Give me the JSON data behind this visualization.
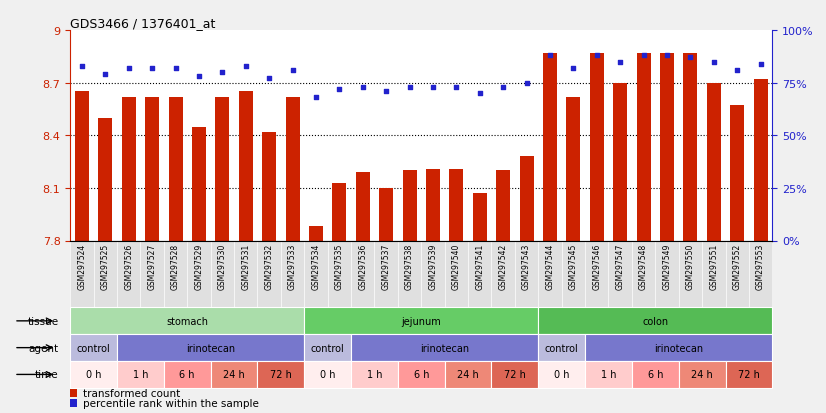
{
  "title": "GDS3466 / 1376401_at",
  "samples": [
    "GSM297524",
    "GSM297525",
    "GSM297526",
    "GSM297527",
    "GSM297528",
    "GSM297529",
    "GSM297530",
    "GSM297531",
    "GSM297532",
    "GSM297533",
    "GSM297534",
    "GSM297535",
    "GSM297536",
    "GSM297537",
    "GSM297538",
    "GSM297539",
    "GSM297540",
    "GSM297541",
    "GSM297542",
    "GSM297543",
    "GSM297544",
    "GSM297545",
    "GSM297546",
    "GSM297547",
    "GSM297548",
    "GSM297549",
    "GSM297550",
    "GSM297551",
    "GSM297552",
    "GSM297553"
  ],
  "bar_values": [
    8.65,
    8.5,
    8.62,
    8.62,
    8.62,
    8.45,
    8.62,
    8.65,
    8.42,
    8.62,
    7.88,
    8.13,
    8.19,
    8.1,
    8.2,
    8.21,
    8.21,
    8.07,
    8.2,
    8.28,
    8.87,
    8.62,
    8.87,
    8.7,
    8.87,
    8.87,
    8.87,
    8.7,
    8.57,
    8.72
  ],
  "percentile_values": [
    83,
    79,
    82,
    82,
    82,
    78,
    80,
    83,
    77,
    81,
    68,
    72,
    73,
    71,
    73,
    73,
    73,
    70,
    73,
    75,
    88,
    82,
    88,
    85,
    88,
    88,
    87,
    85,
    81,
    84
  ],
  "bar_color": "#cc2200",
  "dot_color": "#2222cc",
  "ymin": 7.8,
  "ymax": 9.0,
  "yticks": [
    7.8,
    8.1,
    8.4,
    8.7,
    9.0
  ],
  "ytick_labels": [
    "7.8",
    "8.1",
    "8.4",
    "8.7",
    "9"
  ],
  "right_yticks": [
    0,
    25,
    50,
    75,
    100
  ],
  "hlines": [
    8.1,
    8.4,
    8.7
  ],
  "tissue_groups": [
    {
      "label": "stomach",
      "start": 0,
      "end": 10,
      "color": "#aaddaa"
    },
    {
      "label": "jejunum",
      "start": 10,
      "end": 20,
      "color": "#66cc66"
    },
    {
      "label": "colon",
      "start": 20,
      "end": 30,
      "color": "#55bb55"
    }
  ],
  "agent_groups": [
    {
      "label": "control",
      "start": 0,
      "end": 2,
      "color": "#bbbbdd"
    },
    {
      "label": "irinotecan",
      "start": 2,
      "end": 10,
      "color": "#7777cc"
    },
    {
      "label": "control",
      "start": 10,
      "end": 12,
      "color": "#bbbbdd"
    },
    {
      "label": "irinotecan",
      "start": 12,
      "end": 20,
      "color": "#7777cc"
    },
    {
      "label": "control",
      "start": 20,
      "end": 22,
      "color": "#bbbbdd"
    },
    {
      "label": "irinotecan",
      "start": 22,
      "end": 30,
      "color": "#7777cc"
    }
  ],
  "time_groups": [
    {
      "label": "0 h",
      "start": 0,
      "end": 2,
      "color": "#ffeeee"
    },
    {
      "label": "1 h",
      "start": 2,
      "end": 4,
      "color": "#ffcccc"
    },
    {
      "label": "6 h",
      "start": 4,
      "end": 6,
      "color": "#ff9999"
    },
    {
      "label": "24 h",
      "start": 6,
      "end": 8,
      "color": "#ee8877"
    },
    {
      "label": "72 h",
      "start": 8,
      "end": 10,
      "color": "#dd6655"
    },
    {
      "label": "0 h",
      "start": 10,
      "end": 12,
      "color": "#ffeeee"
    },
    {
      "label": "1 h",
      "start": 12,
      "end": 14,
      "color": "#ffcccc"
    },
    {
      "label": "6 h",
      "start": 14,
      "end": 16,
      "color": "#ff9999"
    },
    {
      "label": "24 h",
      "start": 16,
      "end": 18,
      "color": "#ee8877"
    },
    {
      "label": "72 h",
      "start": 18,
      "end": 20,
      "color": "#dd6655"
    },
    {
      "label": "0 h",
      "start": 20,
      "end": 22,
      "color": "#ffeeee"
    },
    {
      "label": "1 h",
      "start": 22,
      "end": 24,
      "color": "#ffcccc"
    },
    {
      "label": "6 h",
      "start": 24,
      "end": 26,
      "color": "#ff9999"
    },
    {
      "label": "24 h",
      "start": 26,
      "end": 28,
      "color": "#ee8877"
    },
    {
      "label": "72 h",
      "start": 28,
      "end": 30,
      "color": "#dd6655"
    }
  ],
  "legend_bar_label": "transformed count",
  "legend_dot_label": "percentile rank within the sample",
  "chart_bg": "#ffffff",
  "fig_bg": "#f0f0f0",
  "xticklabel_bg": "#e0e0e0"
}
